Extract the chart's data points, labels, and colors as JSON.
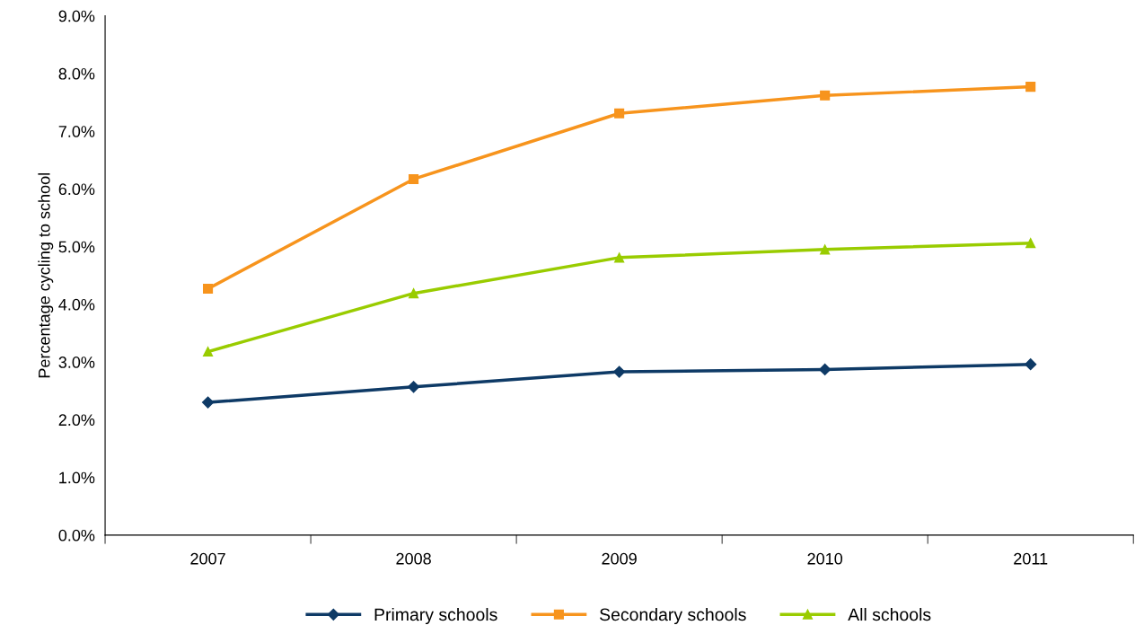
{
  "chart_data": {
    "type": "line",
    "ylabel": "Percentage cycling to school",
    "categories": [
      "2007",
      "2008",
      "2009",
      "2010",
      "2011"
    ],
    "series": [
      {
        "name": "Primary schools",
        "color": "#0e3a66",
        "marker": "diamond",
        "values": [
          2.3,
          2.57,
          2.83,
          2.87,
          2.96
        ]
      },
      {
        "name": "Secondary schools",
        "color": "#f7941d",
        "marker": "square",
        "values": [
          4.27,
          6.17,
          7.31,
          7.62,
          7.77
        ]
      },
      {
        "name": "All schools",
        "color": "#99cc00",
        "marker": "triangle",
        "values": [
          3.18,
          4.19,
          4.81,
          4.95,
          5.06
        ]
      }
    ],
    "ylim": [
      0,
      9
    ],
    "yticks": [
      {
        "value": 0,
        "label": "0.0%"
      },
      {
        "value": 1,
        "label": "1.0%"
      },
      {
        "value": 2,
        "label": "2.0%"
      },
      {
        "value": 3,
        "label": "3.0%"
      },
      {
        "value": 4,
        "label": "4.0%"
      },
      {
        "value": 5,
        "label": "5.0%"
      },
      {
        "value": 6,
        "label": "6.0%"
      },
      {
        "value": 7,
        "label": "7.0%"
      },
      {
        "value": 8,
        "label": "8.0%"
      },
      {
        "value": 9,
        "label": "9.0%"
      }
    ],
    "grid": false,
    "legend": "bottom",
    "line_style": "solid"
  }
}
